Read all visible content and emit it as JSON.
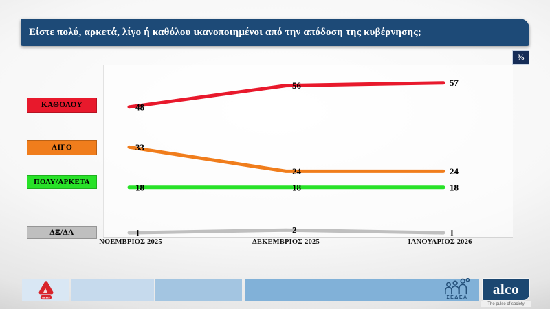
{
  "chart_data": {
    "type": "line",
    "title": "Είστε πολύ, αρκετά, λίγο ή καθόλου ικανοποιημένοι από την απόδοση της κυβέρνησης;",
    "unit": "%",
    "categories": [
      "ΝΟΕΜΒΡΙΟΣ 2025",
      "ΔΕΚΕΜΒΡΙΟΣ 2025",
      "ΙΑΝΟΥΑΡΙΟΣ 2026"
    ],
    "series": [
      {
        "name": "ΚΑΘΟΛΟΥ",
        "color": "#e8192c",
        "values": [
          48,
          56,
          57
        ]
      },
      {
        "name": "ΛΙΓΟ",
        "color": "#f07d1c",
        "values": [
          33,
          24,
          24
        ]
      },
      {
        "name": "ΠΟΛΥ/ΑΡΚΕΤΑ",
        "color": "#28e228",
        "values": [
          18,
          18,
          18
        ]
      },
      {
        "name": "ΔΞ/ΔΑ",
        "color": "#bfbfbf",
        "values": [
          1,
          2,
          1
        ]
      }
    ],
    "legend_position": "left",
    "grid": false,
    "ylim": [
      0,
      65
    ],
    "value_labels": true
  },
  "colors": {
    "title_bar_navy": "#1d4a77",
    "badge_navy": "#152c57",
    "alco_navy": "#1b4771",
    "alpha_red": "#d8232a"
  },
  "footer": {
    "alpha_news_text": "NEWS",
    "sedea_label": "ΣΕΔΕΑ",
    "alco_label": "alco",
    "alco_tagline": "The pulse of society"
  }
}
